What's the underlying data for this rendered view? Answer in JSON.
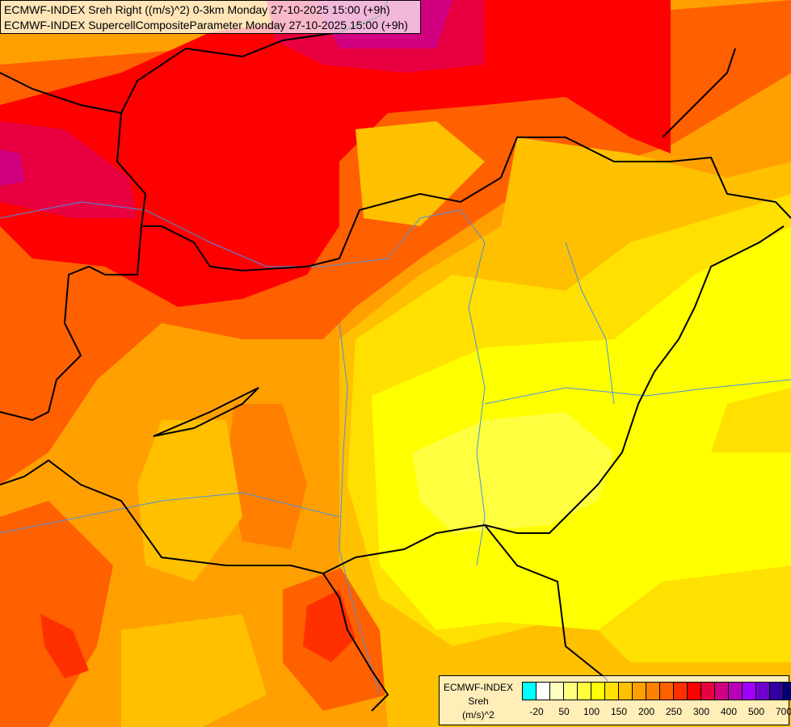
{
  "title": {
    "line1": "ECMWF-INDEX Sreh Right ((m/s)^2) 0-3km Monday 27-10-2025 15:00 (+9h)",
    "line2": "ECMWF-INDEX SupercellCompositeParameter Monday 27-10-2025 15:00 (+9h)"
  },
  "legend": {
    "source": "ECMWF-INDEX",
    "parameter": "Sreh",
    "unit": "(m/s)^2",
    "colors": [
      "#00ffff",
      "#ffffff",
      "#ffffc0",
      "#ffff80",
      "#ffff40",
      "#ffff00",
      "#ffe000",
      "#ffc000",
      "#ffa000",
      "#ff8000",
      "#ff6000",
      "#ff3000",
      "#ff0000",
      "#e80040",
      "#d00080",
      "#b800b8",
      "#a000ff",
      "#7000d0",
      "#3000a0",
      "#000070"
    ],
    "tick_labels": [
      "-20",
      "50",
      "100",
      "150",
      "200",
      "250",
      "300",
      "400",
      "500",
      "700"
    ]
  },
  "map": {
    "border_color": "#000000",
    "river_color": "#4a90e2"
  }
}
